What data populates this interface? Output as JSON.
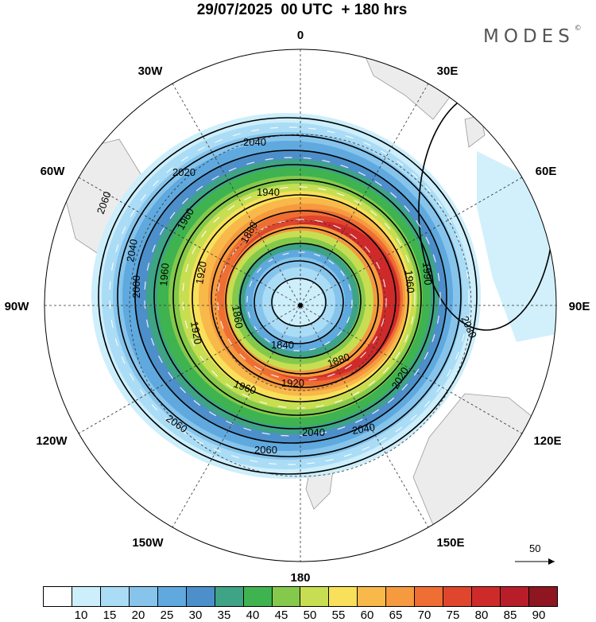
{
  "title": "29/07/2025  00 UTC  + 180 hrs",
  "brand": {
    "name": "MODES",
    "mark": "©"
  },
  "longitude_labels": {
    "n": "0",
    "ne30": "30E",
    "ne60": "60E",
    "e": "90E",
    "se120": "120E",
    "se150": "150E",
    "s": "180",
    "sw150": "150W",
    "sw120": "120W",
    "w": "90W",
    "nw60": "60W",
    "nw30": "30W"
  },
  "contour_labels": [
    {
      "text": "2040"
    },
    {
      "text": "2020"
    },
    {
      "text": "1940"
    },
    {
      "text": "2060"
    },
    {
      "text": "1960"
    },
    {
      "text": "1880"
    },
    {
      "text": "2040"
    },
    {
      "text": "1920"
    },
    {
      "text": "1960"
    },
    {
      "text": "2000"
    },
    {
      "text": "2080"
    },
    {
      "text": "1960"
    },
    {
      "text": "1840"
    },
    {
      "text": "1880"
    },
    {
      "text": "1920"
    },
    {
      "text": "1860"
    },
    {
      "text": "1920"
    },
    {
      "text": "2020"
    },
    {
      "text": "2040"
    },
    {
      "text": "2040"
    },
    {
      "text": "2060"
    },
    {
      "text": "2060"
    },
    {
      "text": "1990"
    },
    {
      "text": "1960"
    }
  ],
  "vector_reference": "50",
  "colorbar": {
    "colors": [
      "#ffffff",
      "#cdeefb",
      "#aadcf5",
      "#86c4ec",
      "#5fa9de",
      "#4d8fca",
      "#3fa386",
      "#3fb34f",
      "#84c94b",
      "#c7de52",
      "#f8e05a",
      "#f8b84a",
      "#f59a3e",
      "#ee6e34",
      "#e0462d",
      "#cf2a2a",
      "#b81e2a",
      "#8e1620"
    ],
    "ticks": [
      "10",
      "15",
      "20",
      "25",
      "30",
      "35",
      "40",
      "45",
      "50",
      "55",
      "60",
      "65",
      "70",
      "75",
      "80",
      "85",
      "90"
    ]
  }
}
